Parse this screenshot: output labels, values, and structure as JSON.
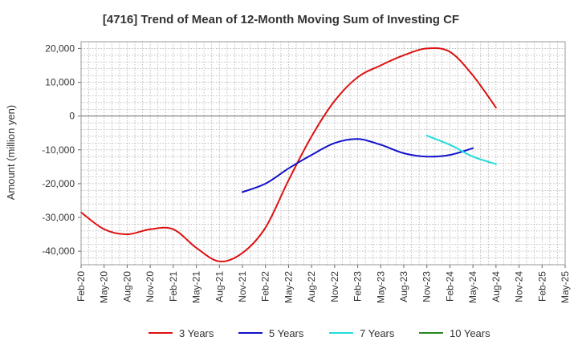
{
  "chart_data": {
    "type": "line",
    "title": "[4716]  Trend of Mean of 12-Month Moving Sum of Investing CF",
    "xlabel": "",
    "ylabel": "Amount (million yen)",
    "ylim": [
      -44000,
      22000
    ],
    "yticks": [
      20000,
      10000,
      0,
      -10000,
      -20000,
      -30000,
      -40000
    ],
    "ytick_labels": [
      "20,000",
      "10,000",
      "0",
      "-10,000",
      "-20,000",
      "-30,000",
      "-40,000"
    ],
    "x_categories": [
      "Feb-20",
      "May-20",
      "Aug-20",
      "Nov-20",
      "Feb-21",
      "May-21",
      "Aug-21",
      "Nov-21",
      "Feb-22",
      "May-22",
      "Aug-22",
      "Nov-22",
      "Feb-23",
      "May-23",
      "Aug-23",
      "Nov-23",
      "Feb-24",
      "May-24",
      "Aug-24",
      "Nov-24",
      "Feb-25",
      "May-25"
    ],
    "grid": true,
    "legend_position": "bottom",
    "series": [
      {
        "name": "3 Years",
        "color": "#dd1111",
        "start_index": 0,
        "values": [
          -28500,
          -33500,
          -35000,
          -33500,
          -33500,
          -39000,
          -43000,
          -40500,
          -33000,
          -19000,
          -6000,
          4500,
          11500,
          15000,
          18000,
          20000,
          19000,
          12000,
          2500
        ]
      },
      {
        "name": "5 Years",
        "color": "#1111cc",
        "start_index": 7,
        "values": [
          -22500,
          -20000,
          -15500,
          -11500,
          -8000,
          -6800,
          -8500,
          -11000,
          -12000,
          -11500,
          -9500
        ]
      },
      {
        "name": "7 Years",
        "color": "#22dddd",
        "start_index": 15,
        "values": [
          -5800,
          -8500,
          -12000,
          -14200
        ]
      },
      {
        "name": "10 Years",
        "color": "#228822",
        "start_index": 0,
        "values": []
      }
    ]
  }
}
